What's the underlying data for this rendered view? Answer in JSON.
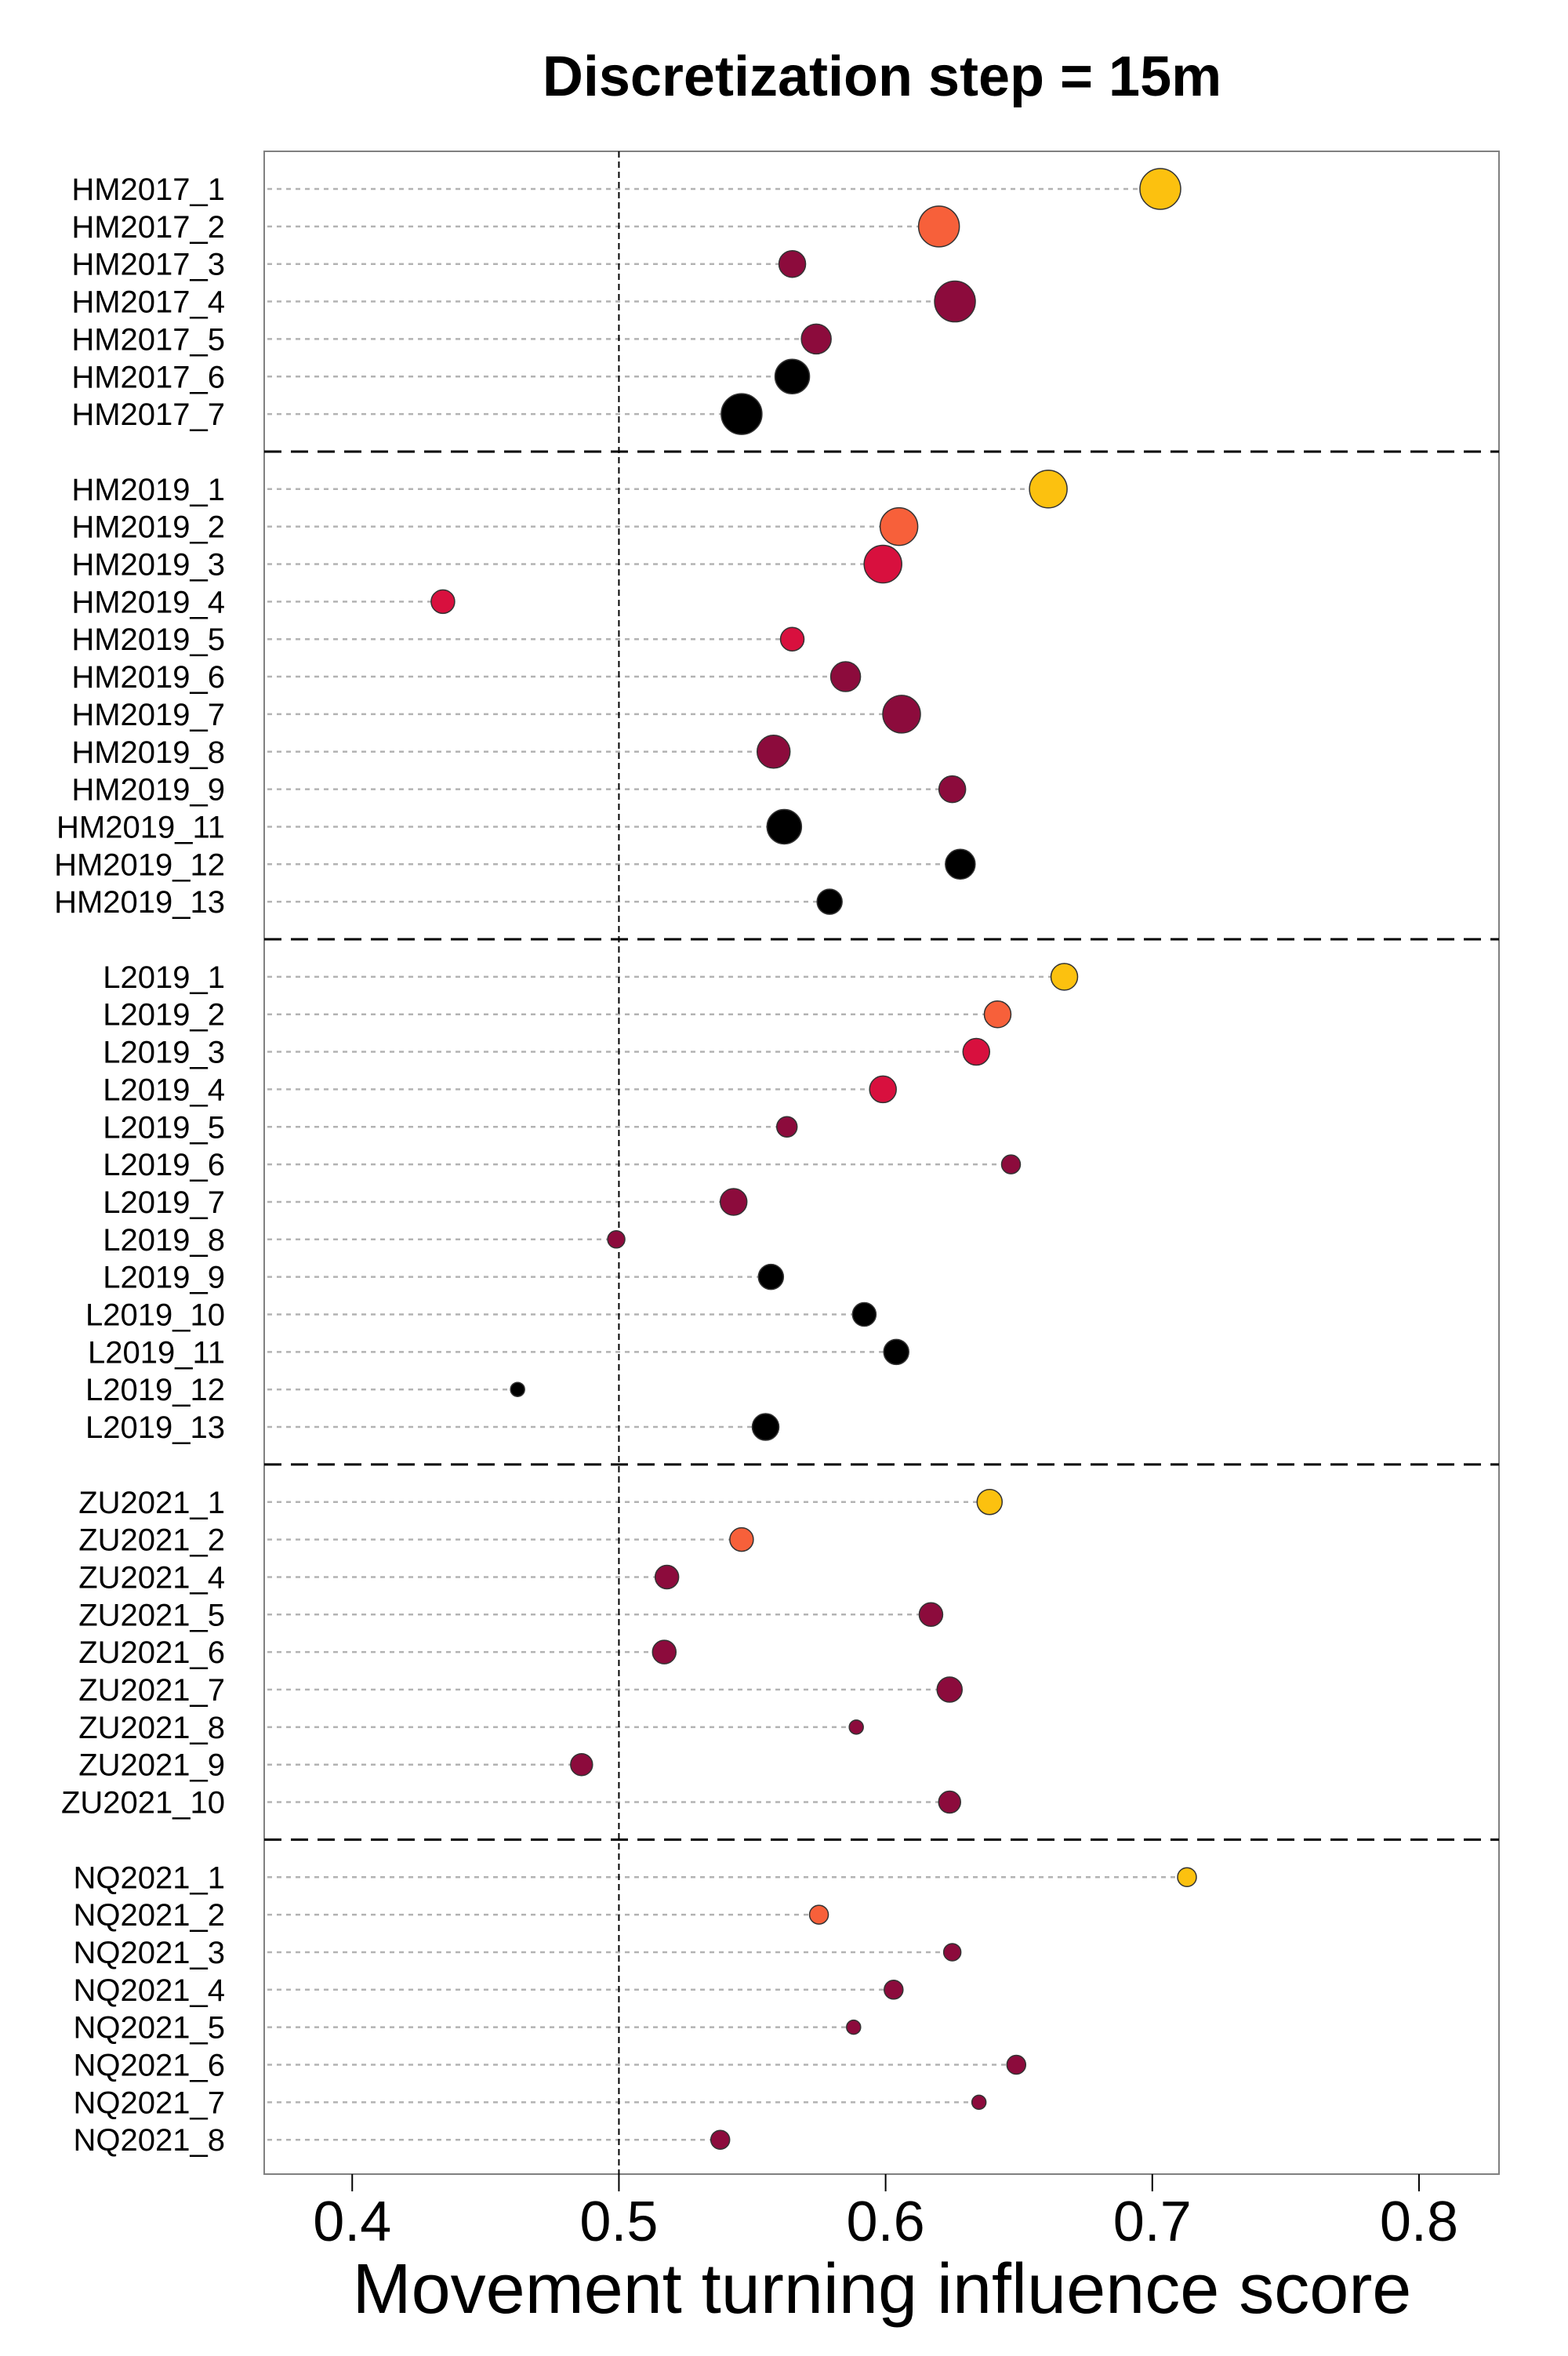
{
  "chart_data": {
    "type": "scatter",
    "title": "Discretization step = 15m",
    "xlabel": "Movement turning influence score",
    "ylabel": "",
    "xlim": [
      0.367,
      0.83
    ],
    "xticks": [
      "0.4",
      "0.5",
      "0.6",
      "0.7",
      "0.8"
    ],
    "xtick_values": [
      0.4,
      0.5,
      0.6,
      0.7,
      0.8
    ],
    "reference_line": 0.5,
    "grid": "horizontal dotted leader lines",
    "legend": "none",
    "colors": {
      "c1": "#fcc10f",
      "c2": "#f7603a",
      "c3": "#d8103e",
      "c4": "#8c0b3c",
      "c5": "#000000"
    },
    "groups": [
      {
        "name": "HM2017",
        "points": [
          {
            "label": "HM2017_1",
            "x": 0.703,
            "size": 26,
            "color": "c1"
          },
          {
            "label": "HM2017_2",
            "x": 0.62,
            "size": 26,
            "color": "c2"
          },
          {
            "label": "HM2017_3",
            "x": 0.565,
            "size": 17,
            "color": "c4"
          },
          {
            "label": "HM2017_4",
            "x": 0.626,
            "size": 26,
            "color": "c4"
          },
          {
            "label": "HM2017_5",
            "x": 0.574,
            "size": 19,
            "color": "c4"
          },
          {
            "label": "HM2017_6",
            "x": 0.565,
            "size": 22,
            "color": "c5"
          },
          {
            "label": "HM2017_7",
            "x": 0.546,
            "size": 26,
            "color": "c5"
          }
        ]
      },
      {
        "name": "HM2019",
        "points": [
          {
            "label": "HM2019_1",
            "x": 0.661,
            "size": 24,
            "color": "c1"
          },
          {
            "label": "HM2019_2",
            "x": 0.605,
            "size": 24,
            "color": "c2"
          },
          {
            "label": "HM2019_3",
            "x": 0.599,
            "size": 24,
            "color": "c3"
          },
          {
            "label": "HM2019_4",
            "x": 0.434,
            "size": 15,
            "color": "c3"
          },
          {
            "label": "HM2019_5",
            "x": 0.565,
            "size": 15,
            "color": "c3"
          },
          {
            "label": "HM2019_6",
            "x": 0.585,
            "size": 19,
            "color": "c4"
          },
          {
            "label": "HM2019_7",
            "x": 0.606,
            "size": 24,
            "color": "c4"
          },
          {
            "label": "HM2019_8",
            "x": 0.558,
            "size": 21,
            "color": "c4"
          },
          {
            "label": "HM2019_9",
            "x": 0.625,
            "size": 17,
            "color": "c4"
          },
          {
            "label": "HM2019_11",
            "x": 0.562,
            "size": 22,
            "color": "c5"
          },
          {
            "label": "HM2019_12",
            "x": 0.628,
            "size": 19,
            "color": "c5"
          },
          {
            "label": "HM2019_13",
            "x": 0.579,
            "size": 16,
            "color": "c5"
          }
        ]
      },
      {
        "name": "L2019",
        "points": [
          {
            "label": "L2019_1",
            "x": 0.667,
            "size": 17,
            "color": "c1"
          },
          {
            "label": "L2019_2",
            "x": 0.642,
            "size": 17,
            "color": "c2"
          },
          {
            "label": "L2019_3",
            "x": 0.634,
            "size": 17,
            "color": "c3"
          },
          {
            "label": "L2019_4",
            "x": 0.599,
            "size": 17,
            "color": "c3"
          },
          {
            "label": "L2019_5",
            "x": 0.563,
            "size": 13,
            "color": "c4"
          },
          {
            "label": "L2019_6",
            "x": 0.647,
            "size": 12,
            "color": "c4"
          },
          {
            "label": "L2019_7",
            "x": 0.543,
            "size": 17,
            "color": "c4"
          },
          {
            "label": "L2019_8",
            "x": 0.499,
            "size": 11,
            "color": "c4"
          },
          {
            "label": "L2019_9",
            "x": 0.557,
            "size": 16,
            "color": "c5"
          },
          {
            "label": "L2019_10",
            "x": 0.592,
            "size": 15,
            "color": "c5"
          },
          {
            "label": "L2019_11",
            "x": 0.604,
            "size": 16,
            "color": "c5"
          },
          {
            "label": "L2019_12",
            "x": 0.462,
            "size": 9,
            "color": "c5"
          },
          {
            "label": "L2019_13",
            "x": 0.555,
            "size": 17,
            "color": "c5"
          }
        ]
      },
      {
        "name": "ZU2021",
        "points": [
          {
            "label": "ZU2021_1",
            "x": 0.639,
            "size": 16,
            "color": "c1"
          },
          {
            "label": "ZU2021_2",
            "x": 0.546,
            "size": 15,
            "color": "c2"
          },
          {
            "label": "ZU2021_4",
            "x": 0.518,
            "size": 15,
            "color": "c4"
          },
          {
            "label": "ZU2021_5",
            "x": 0.617,
            "size": 15,
            "color": "c4"
          },
          {
            "label": "ZU2021_6",
            "x": 0.517,
            "size": 15,
            "color": "c4"
          },
          {
            "label": "ZU2021_7",
            "x": 0.624,
            "size": 16,
            "color": "c4"
          },
          {
            "label": "ZU2021_8",
            "x": 0.589,
            "size": 9,
            "color": "c4"
          },
          {
            "label": "ZU2021_9",
            "x": 0.486,
            "size": 14,
            "color": "c4"
          },
          {
            "label": "ZU2021_10",
            "x": 0.624,
            "size": 14,
            "color": "c4"
          }
        ]
      },
      {
        "name": "NQ2021",
        "points": [
          {
            "label": "NQ2021_1",
            "x": 0.713,
            "size": 12,
            "color": "c1"
          },
          {
            "label": "NQ2021_2",
            "x": 0.575,
            "size": 12,
            "color": "c2"
          },
          {
            "label": "NQ2021_3",
            "x": 0.625,
            "size": 11,
            "color": "c4"
          },
          {
            "label": "NQ2021_4",
            "x": 0.603,
            "size": 12,
            "color": "c4"
          },
          {
            "label": "NQ2021_5",
            "x": 0.588,
            "size": 9,
            "color": "c4"
          },
          {
            "label": "NQ2021_6",
            "x": 0.649,
            "size": 12,
            "color": "c4"
          },
          {
            "label": "NQ2021_7",
            "x": 0.635,
            "size": 9,
            "color": "c4"
          },
          {
            "label": "NQ2021_8",
            "x": 0.538,
            "size": 12,
            "color": "c4"
          }
        ]
      }
    ]
  }
}
